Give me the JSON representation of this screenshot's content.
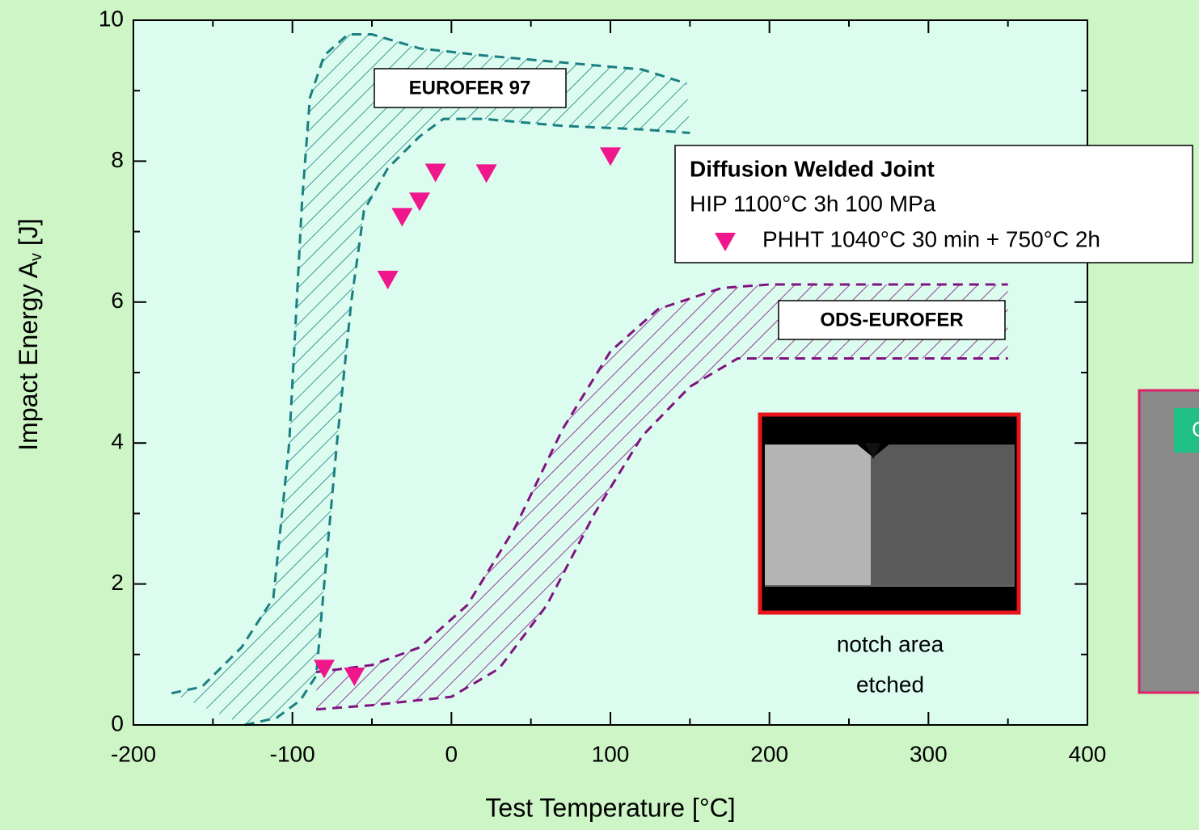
{
  "chart_data": {
    "type": "scatter",
    "x_label": "Test Temperature [°C]",
    "y_label_main": "Impact Energy A",
    "y_label_sub": "v",
    "y_label_end": " [J]",
    "xlim": [
      -200,
      400
    ],
    "ylim": [
      0,
      10
    ],
    "xticks": [
      -200,
      -100,
      0,
      100,
      200,
      300,
      400
    ],
    "yticks": [
      0,
      2,
      4,
      6,
      8,
      10
    ],
    "xminorticks": [
      -150,
      -50,
      50,
      150,
      250,
      350
    ],
    "yminorticks": [
      1,
      3,
      5,
      7,
      9
    ],
    "legend_title": "Diffusion Welded Joint",
    "legend_subtitle": "HIP 1100°C 3h 100 MPa",
    "series": [
      {
        "name": "PHHT 1040°C 30 min + 750°C 2h",
        "color": "#f0168c",
        "marker": "triangle-down",
        "x": [
          -80,
          -61,
          -40,
          -31,
          -20,
          -10,
          22,
          100
        ],
        "y": [
          0.81,
          0.7,
          6.33,
          7.22,
          7.44,
          7.85,
          7.84,
          8.08
        ]
      }
    ],
    "bands": [
      {
        "label": "EUROFER 97",
        "color": "#1a7f80",
        "upper": {
          "x": [
            -176,
            -157,
            -132,
            -112,
            -102,
            -94,
            -89,
            -80,
            -65,
            -50,
            -20,
            20,
            70,
            120,
            148
          ],
          "y": [
            0.45,
            0.54,
            1.1,
            1.8,
            4,
            7.4,
            8.9,
            9.5,
            9.8,
            9.8,
            9.6,
            9.5,
            9.4,
            9.3,
            9.1
          ]
        },
        "lower": {
          "x": [
            -130,
            -110,
            -95,
            -85,
            -80,
            -72,
            -63,
            -55,
            -40,
            -20,
            -5,
            20,
            70,
            120,
            150
          ],
          "y": [
            0,
            0.1,
            0.35,
            0.7,
            2,
            4,
            6,
            7.3,
            7.9,
            8.35,
            8.6,
            8.6,
            8.5,
            8.45,
            8.4
          ]
        }
      },
      {
        "label": "ODS-EUROFER",
        "color": "#7f1480",
        "upper": {
          "x": [
            -85,
            -50,
            -20,
            10,
            40,
            70,
            100,
            130,
            170,
            200,
            260,
            350
          ],
          "y": [
            0.75,
            0.85,
            1.1,
            1.7,
            2.8,
            4.2,
            5.3,
            5.9,
            6.2,
            6.25,
            6.25,
            6.25
          ]
        },
        "lower": {
          "x": [
            -85,
            -50,
            0,
            30,
            60,
            90,
            120,
            150,
            180,
            220,
            350
          ],
          "y": [
            0.22,
            0.28,
            0.4,
            0.8,
            1.7,
            3,
            4.1,
            4.8,
            5.2,
            5.2,
            5.2
          ]
        }
      }
    ],
    "inset_caption_1": "notch area",
    "inset_caption_2": "etched",
    "side_image_label": "C"
  }
}
